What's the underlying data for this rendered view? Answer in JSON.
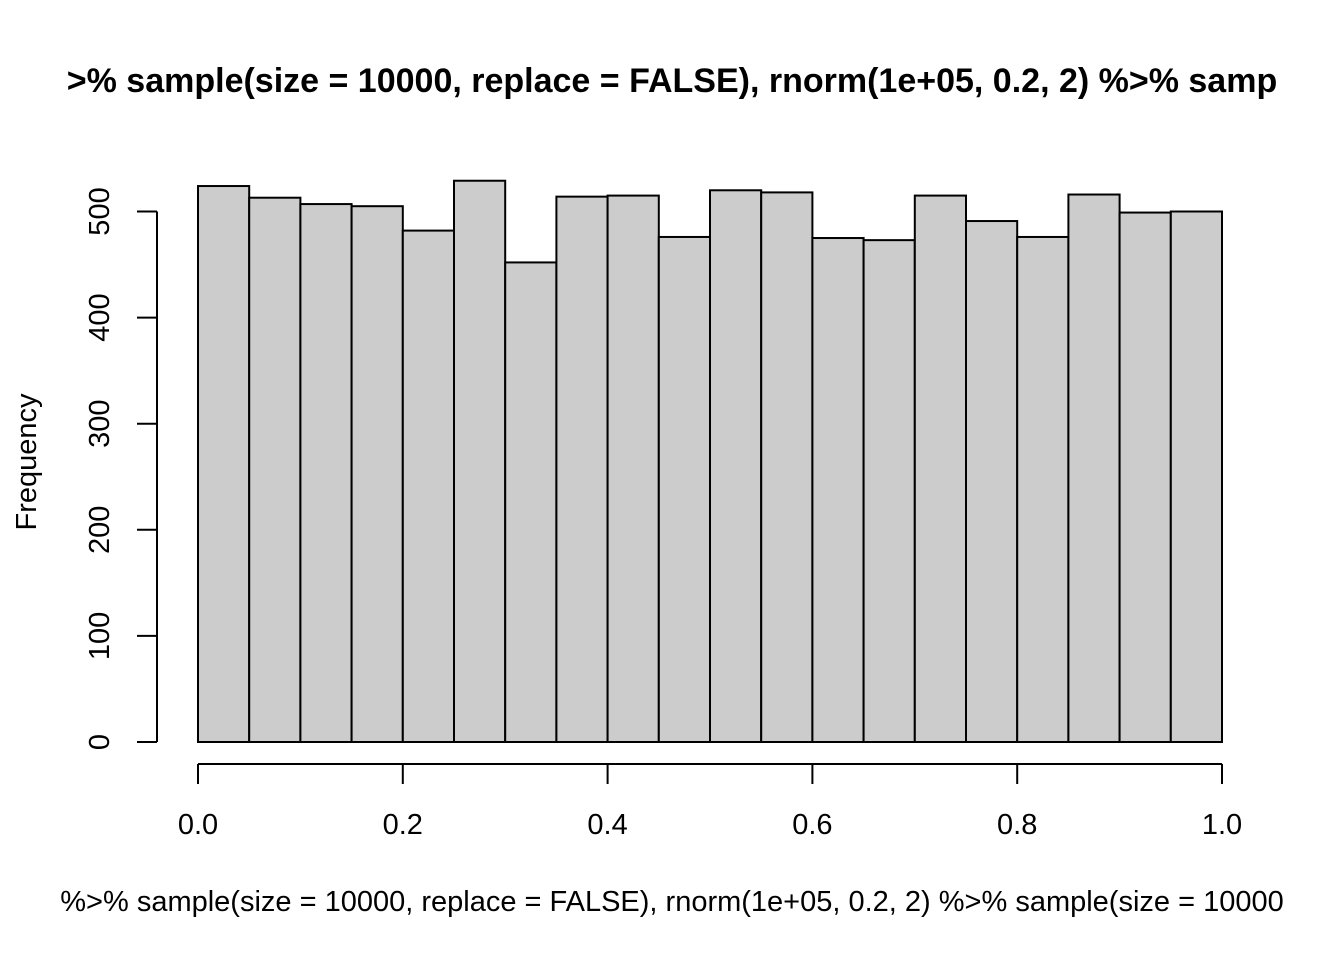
{
  "chart_data": {
    "type": "bar",
    "title": "...>% sample(size = 10000, replace = FALSE), rnorm(1e+05, 0.2, 2) %>% samp...",
    "title_visible": ">% sample(size = 10000, replace = FALSE), rnorm(1e+05, 0.2, 2) %>% samp",
    "xlabel": "%>% sample(size = 10000, replace = FALSE), rnorm(1e+05, 0.2, 2) %>% sample(size = 10000",
    "ylabel": "Frequency",
    "bin_edges": [
      0.0,
      0.05,
      0.1,
      0.15,
      0.2,
      0.25,
      0.3,
      0.35,
      0.4,
      0.45,
      0.5,
      0.55,
      0.6,
      0.65,
      0.7,
      0.75,
      0.8,
      0.85,
      0.9,
      0.95,
      1.0
    ],
    "values": [
      524,
      513,
      507,
      505,
      482,
      529,
      452,
      514,
      515,
      476,
      520,
      518,
      475,
      473,
      515,
      491,
      476,
      516,
      499,
      500
    ],
    "xlim": [
      0,
      1
    ],
    "ylim": [
      0,
      529
    ],
    "xticks": [
      "0.0",
      "0.2",
      "0.4",
      "0.6",
      "0.8",
      "1.0"
    ],
    "yticks": [
      "0",
      "100",
      "200",
      "300",
      "400",
      "500"
    ],
    "bar_fill": "#cccccc",
    "bar_stroke": "#000000",
    "grid": false,
    "legend": "none"
  }
}
